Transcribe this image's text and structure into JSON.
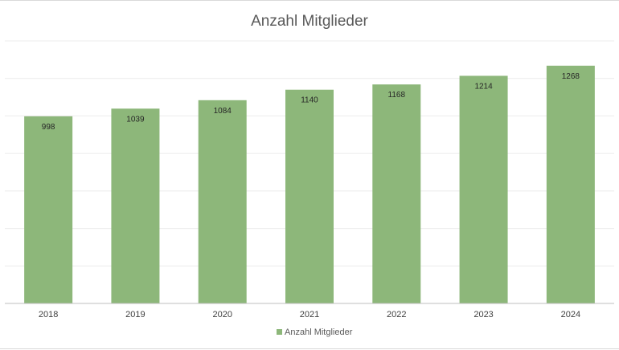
{
  "chart_data": {
    "type": "bar",
    "title": "Anzahl Mitglieder",
    "categories": [
      "2018",
      "2019",
      "2020",
      "2021",
      "2022",
      "2023",
      "2024"
    ],
    "series": [
      {
        "name": "Anzahl Mitglieder",
        "values": [
          998,
          1039,
          1084,
          1140,
          1168,
          1214,
          1268
        ],
        "color": "#8db77a"
      }
    ],
    "ylim": [
      0,
      1400
    ],
    "grid": true,
    "legend": "bottom",
    "data_labels": true
  }
}
